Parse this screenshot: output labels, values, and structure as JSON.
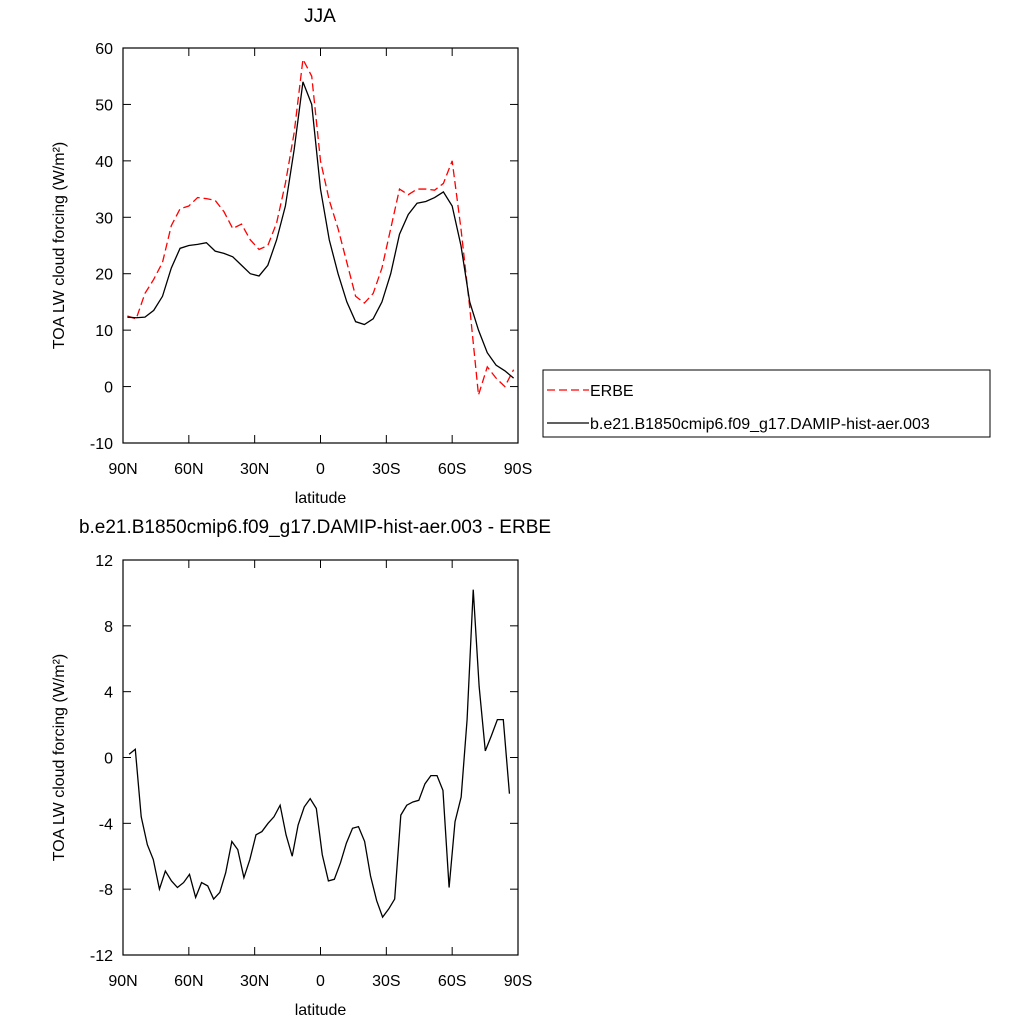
{
  "chart_data": [
    {
      "type": "line",
      "title": "JJA",
      "x_label": "latitude",
      "y_label": "TOA LW cloud forcing (W/m²)",
      "x": [
        88,
        84,
        80,
        76,
        72,
        68,
        64,
        60,
        56,
        52,
        48,
        44,
        40,
        36,
        32,
        28,
        24,
        20,
        16,
        12,
        8,
        4,
        0,
        -4,
        -8,
        -12,
        -16,
        -20,
        -24,
        -28,
        -32,
        -36,
        -40,
        -44,
        -48,
        -52,
        -56,
        -60,
        -64,
        -68,
        -72,
        -76,
        -80,
        -84,
        -88
      ],
      "xlim": [
        90,
        -90
      ],
      "xticks": [
        {
          "value": 90,
          "label": "90N"
        },
        {
          "value": 60,
          "label": "60N"
        },
        {
          "value": 30,
          "label": "30N"
        },
        0,
        {
          "value": -30,
          "label": "30S"
        },
        {
          "value": -60,
          "label": "60S"
        },
        {
          "value": -90,
          "label": "90S"
        }
      ],
      "ylim": [
        -10,
        60
      ],
      "yticks": [
        -10,
        0,
        10,
        20,
        30,
        40,
        50,
        60
      ],
      "legend": true,
      "series": [
        {
          "name": "ERBE",
          "color": "#ff0000",
          "line_style": "dashed",
          "values": [
            12.5,
            12,
            16.5,
            19,
            22,
            28.5,
            31.5,
            32,
            33.5,
            33.3,
            33,
            31,
            28,
            28.8,
            26,
            24.3,
            25,
            29,
            36,
            45,
            58,
            55,
            40,
            33,
            28,
            22,
            16,
            14.8,
            16.5,
            21,
            28,
            35,
            34,
            35,
            35,
            34.8,
            36,
            40,
            28,
            14,
            -1.5,
            3.5,
            1.5,
            0,
            3
          ]
        },
        {
          "name": "b.e21.B1850cmip6.f09_g17.DAMIP-hist-aer.003",
          "color": "#000000",
          "line_style": "solid",
          "values": [
            12.3,
            12.2,
            12.3,
            13.5,
            16,
            21,
            24.5,
            25,
            25.2,
            25.5,
            24,
            23.6,
            23,
            21.5,
            20,
            19.6,
            21.5,
            26,
            32,
            42,
            54,
            50,
            35,
            26,
            20,
            15,
            11.5,
            11,
            12,
            15,
            20,
            27,
            30.5,
            32.5,
            32.8,
            33.5,
            34.5,
            32,
            25,
            15,
            10,
            6,
            3.8,
            2.8,
            1.5
          ]
        }
      ]
    },
    {
      "type": "line",
      "title": "b.e21.B1850cmip6.f09_g17.DAMIP-hist-aer.003 - ERBE",
      "x_label": "latitude",
      "y_label": "TOA LW cloud forcing (W/m²)",
      "x": [
        87.2,
        84.4,
        81.7,
        78.9,
        76.2,
        73.4,
        70.7,
        67.9,
        65.2,
        62.4,
        59.7,
        56.9,
        54.2,
        51.4,
        48.7,
        45.9,
        43.2,
        40.4,
        37.7,
        34.9,
        32.2,
        29.4,
        26.7,
        23.9,
        21.2,
        18.4,
        15.7,
        12.9,
        10.2,
        7.4,
        4.7,
        1.9,
        -0.8,
        -3.6,
        -6.3,
        -9.1,
        -11.8,
        -14.6,
        -17.3,
        -20.1,
        -22.8,
        -25.6,
        -28.3,
        -31.1,
        -33.8,
        -36.6,
        -39.3,
        -42.1,
        -44.8,
        -47.6,
        -50.3,
        -53.1,
        -55.8,
        -58.6,
        -61.3,
        -64.1,
        -66.8,
        -69.6,
        -72.3,
        -75.1,
        -77.8,
        -80.6,
        -83.3,
        -86.1
      ],
      "xlim": [
        90,
        -90
      ],
      "xticks": [
        {
          "value": 90,
          "label": "90N"
        },
        {
          "value": 60,
          "label": "60N"
        },
        {
          "value": 30,
          "label": "30N"
        },
        0,
        {
          "value": -30,
          "label": "30S"
        },
        {
          "value": -60,
          "label": "60S"
        },
        {
          "value": -90,
          "label": "90S"
        }
      ],
      "ylim": [
        -12,
        12
      ],
      "yticks": [
        -12,
        -8,
        -4,
        0,
        4,
        8,
        12
      ],
      "legend": false,
      "series": [
        {
          "color": "#000000",
          "line_style": "solid",
          "values": [
            0.2,
            0.5,
            -3.6,
            -5.3,
            -6.2,
            -8,
            -6.9,
            -7.5,
            -7.9,
            -7.6,
            -7.1,
            -8.5,
            -7.6,
            -7.8,
            -8.6,
            -8.2,
            -7,
            -5.1,
            -5.6,
            -7.3,
            -6.2,
            -4.7,
            -4.5,
            -4,
            -3.6,
            -2.9,
            -4.7,
            -6,
            -4.1,
            -3,
            -2.5,
            -3.1,
            -5.9,
            -7.5,
            -7.4,
            -6.4,
            -5.2,
            -4.3,
            -4.2,
            -5.1,
            -7.2,
            -8.7,
            -9.7,
            -9.2,
            -8.6,
            -3.5,
            -2.9,
            -2.7,
            -2.6,
            -1.6,
            -1.1,
            -1.1,
            -2,
            -7.9,
            -3.9,
            -2.4,
            2.3,
            10.2,
            4.3,
            0.4,
            1.3,
            2.3,
            2.3,
            -2.2
          ]
        }
      ]
    }
  ]
}
